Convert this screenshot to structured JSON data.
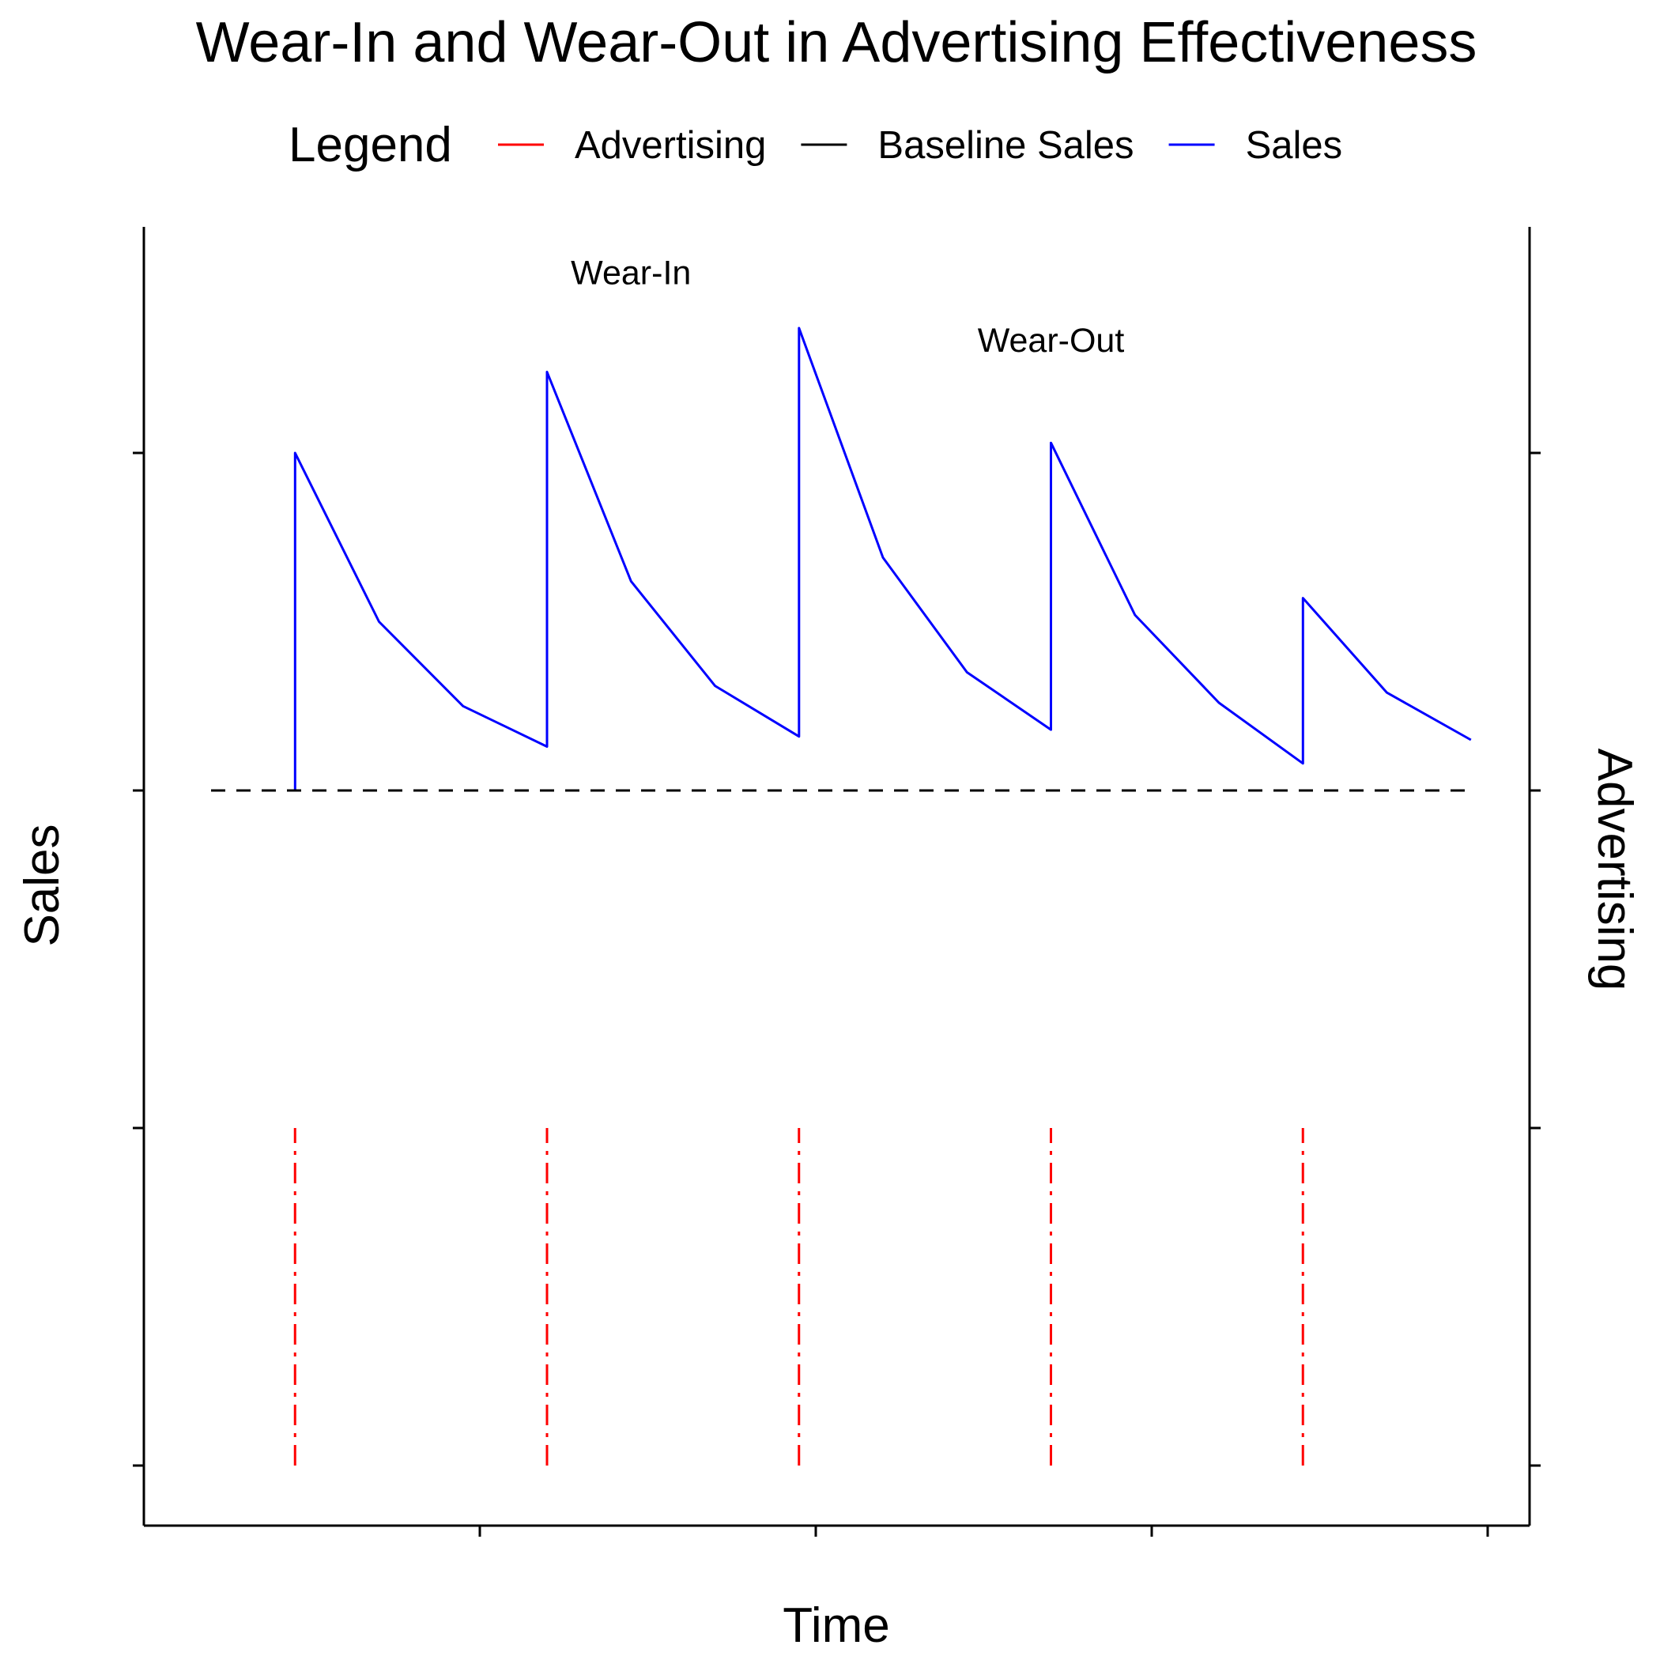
{
  "chart_data": {
    "type": "line",
    "title": "Wear-In and Wear-Out in Advertising Effectiveness",
    "xlabel": "Time",
    "ylabel": "Sales",
    "y2label": "Advertising",
    "legend": {
      "title": "Legend",
      "placement": "top",
      "entries": [
        {
          "label": "Advertising",
          "color": "#ff0000"
        },
        {
          "label": "Baseline Sales",
          "color": "#000000"
        },
        {
          "label": "Sales",
          "color": "#0000ff"
        }
      ]
    },
    "axes": {
      "tick_labels_shown": false,
      "xlim": [
        0,
        8.3
      ],
      "ylim": [
        -1.7,
        2.15
      ]
    },
    "series": [
      {
        "name": "Sales",
        "color": "#0000ff",
        "linestyle": "solid",
        "points": [
          [
            0.9,
            0
          ],
          [
            0.9,
            1.0
          ],
          [
            1.4,
            0.5
          ],
          [
            1.9,
            0.25
          ],
          [
            2.4,
            0.13
          ],
          [
            2.4,
            1.24
          ],
          [
            2.9,
            0.62
          ],
          [
            3.4,
            0.31
          ],
          [
            3.9,
            0.16
          ],
          [
            3.9,
            1.37
          ],
          [
            4.4,
            0.69
          ],
          [
            4.9,
            0.35
          ],
          [
            5.4,
            0.18
          ],
          [
            5.4,
            1.03
          ],
          [
            5.9,
            0.52
          ],
          [
            6.4,
            0.26
          ],
          [
            6.9,
            0.08
          ],
          [
            6.9,
            0.57
          ],
          [
            7.4,
            0.29
          ],
          [
            7.9,
            0.15
          ]
        ]
      },
      {
        "name": "Baseline Sales",
        "color": "#000000",
        "linestyle": "dashed",
        "points": [
          [
            0.4,
            0
          ],
          [
            7.9,
            0
          ]
        ]
      },
      {
        "name": "Advertising",
        "color": "#ff0000",
        "linestyle": "dashdot",
        "bursts": [
          {
            "x": 0.9,
            "y0": -2,
            "y1": -1
          },
          {
            "x": 2.4,
            "y0": -2,
            "y1": -1
          },
          {
            "x": 3.9,
            "y0": -2,
            "y1": -1
          },
          {
            "x": 5.4,
            "y0": -2,
            "y1": -1
          },
          {
            "x": 6.9,
            "y0": -2,
            "y1": -1
          }
        ]
      }
    ],
    "annotations": [
      {
        "text": "Wear-In",
        "x": 2.9,
        "y": 1.5
      },
      {
        "text": "Wear-Out",
        "x": 5.4,
        "y": 1.3
      }
    ]
  }
}
